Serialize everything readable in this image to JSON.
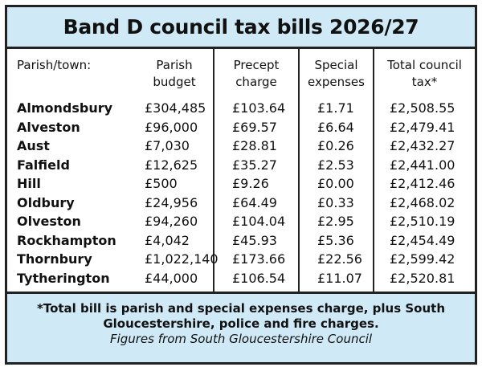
{
  "title": "Band D council tax bills 2026/27",
  "headers": {
    "parish": "Parish/town:",
    "budget": [
      "Parish",
      "budget"
    ],
    "precept": [
      "Precept",
      "charge"
    ],
    "special": [
      "Special",
      "expenses"
    ],
    "total": [
      "Total council",
      "tax*"
    ]
  },
  "rows": [
    {
      "name": "Almondsbury",
      "budget": "£304,485",
      "precept": "£103.64",
      "special": "£1.71",
      "total": "£2,508.55"
    },
    {
      "name": "Alveston",
      "budget": "£96,000",
      "precept": "£69.57",
      "special": "£6.64",
      "total": "£2,479.41"
    },
    {
      "name": "Aust",
      "budget": "£7,030",
      "precept": "£28.81",
      "special": "£0.26",
      "total": "£2,432.27"
    },
    {
      "name": "Falfield",
      "budget": "£12,625",
      "precept": "£35.27",
      "special": "£2.53",
      "total": "£2,441.00"
    },
    {
      "name": "Hill",
      "budget": "£500",
      "precept": "£9.26",
      "special": "£0.00",
      "total": "£2,412.46"
    },
    {
      "name": "Oldbury",
      "budget": "£24,956",
      "precept": "£64.49",
      "special": "£0.33",
      "total": "£2,468.02"
    },
    {
      "name": "Olveston",
      "budget": "£94,260",
      "precept": "£104.04",
      "special": "£2.95",
      "total": "£2,510.19"
    },
    {
      "name": "Rockhampton",
      "budget": "£4,042",
      "precept": "£45.93",
      "special": "£5.36",
      "total": "£2,454.49"
    },
    {
      "name": "Thornbury",
      "budget": "£1,022,140",
      "precept": "£173.66",
      "special": "£22.56",
      "total": "£2,599.42"
    },
    {
      "name": "Tytherington",
      "budget": "£44,000",
      "precept": "£106.54",
      "special": "£11.07",
      "total": "£2,520.81"
    }
  ],
  "footer": {
    "note_line1": "*Total bill is parish and special expenses charge, plus South",
    "note_line2": "Gloucestershire, police and fire charges.",
    "source": "Figures from South Gloucestershire Council"
  },
  "colors": {
    "band": "#cfe9f7",
    "border": "#222222"
  }
}
